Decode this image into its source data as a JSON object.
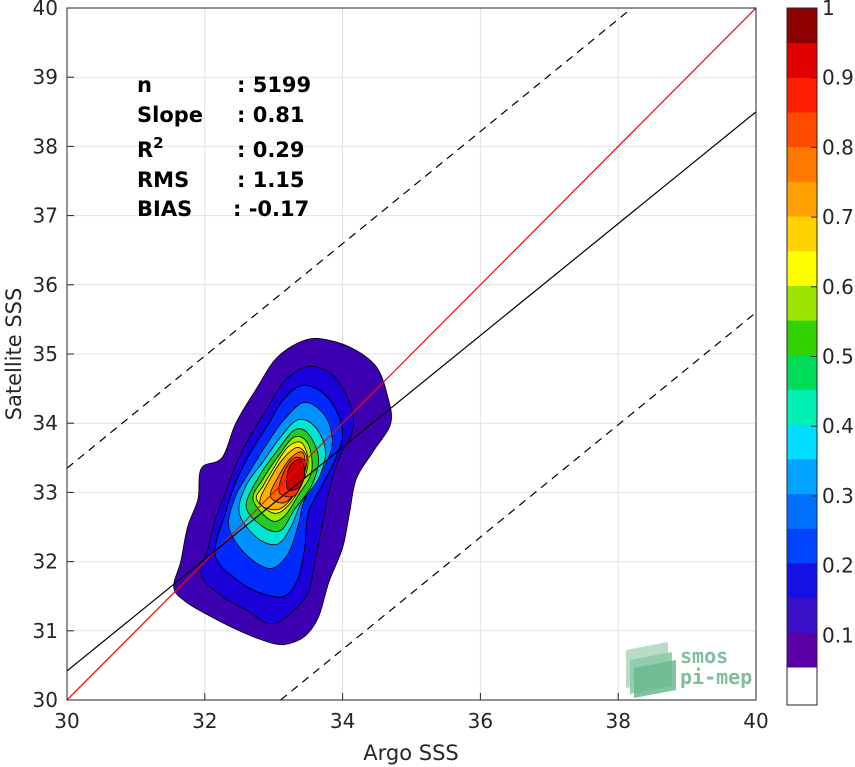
{
  "chart_data": {
    "type": "contour-density-scatter",
    "xlabel": "Argo SSS",
    "ylabel": "Satellite SSS",
    "xlim": [
      30,
      40
    ],
    "ylim": [
      30,
      40
    ],
    "x_ticks": [
      "30",
      "32",
      "34",
      "36",
      "38",
      "40"
    ],
    "y_ticks": [
      "30",
      "31",
      "32",
      "33",
      "34",
      "35",
      "36",
      "37",
      "38",
      "39",
      "40"
    ],
    "grid": true,
    "stats": {
      "n_label": "n",
      "n_value": ": 5199",
      "slope_label": "Slope",
      "slope_value": ": 0.81",
      "r2_label": "R",
      "r2_sup": "2",
      "r2_value": ": 0.29",
      "rms_label": "RMS",
      "rms_value": ": 1.15",
      "bias_label": "BIAS",
      "bias_value": ": -0.17"
    },
    "lines": [
      {
        "role": "one-to-one",
        "color": "#ff0000",
        "style": "solid",
        "x": [
          30,
          40
        ],
        "y": [
          30,
          40
        ]
      },
      {
        "role": "regression",
        "color": "#000000",
        "style": "solid",
        "x": [
          30,
          40
        ],
        "y": [
          30.42,
          38.5
        ]
      },
      {
        "role": "upper-bound",
        "color": "#000000",
        "style": "dashed",
        "x": [
          30,
          38.2
        ],
        "y": [
          33.35,
          40
        ]
      },
      {
        "role": "lower-bound",
        "color": "#000000",
        "style": "dashed",
        "x": [
          33.1,
          40
        ],
        "y": [
          30,
          35.6
        ]
      }
    ],
    "contour_levels": [
      {
        "level": 0.05,
        "color": "#3d00b0",
        "points": [
          [
            31.55,
            31.62
          ],
          [
            31.75,
            31.4
          ],
          [
            32.1,
            31.2
          ],
          [
            32.5,
            31.0
          ],
          [
            32.85,
            30.86
          ],
          [
            33.15,
            30.8
          ],
          [
            33.45,
            30.92
          ],
          [
            33.65,
            31.2
          ],
          [
            33.8,
            31.7
          ],
          [
            34.0,
            32.2
          ],
          [
            34.1,
            32.7
          ],
          [
            34.2,
            33.2
          ],
          [
            34.45,
            33.6
          ],
          [
            34.7,
            34.0
          ],
          [
            34.65,
            34.4
          ],
          [
            34.5,
            34.8
          ],
          [
            34.2,
            35.05
          ],
          [
            33.8,
            35.2
          ],
          [
            33.45,
            35.2
          ],
          [
            33.05,
            34.95
          ],
          [
            32.75,
            34.5
          ],
          [
            32.45,
            34.0
          ],
          [
            32.25,
            33.5
          ],
          [
            31.95,
            33.35
          ],
          [
            31.9,
            32.9
          ],
          [
            31.75,
            32.5
          ],
          [
            31.65,
            32.0
          ]
        ]
      },
      {
        "level": 0.1,
        "color": "#1a00d9",
        "points": [
          [
            31.95,
            31.8
          ],
          [
            32.25,
            31.5
          ],
          [
            32.6,
            31.3
          ],
          [
            32.95,
            31.1
          ],
          [
            33.25,
            31.25
          ],
          [
            33.5,
            31.55
          ],
          [
            33.6,
            32.0
          ],
          [
            33.7,
            32.5
          ],
          [
            33.8,
            33.0
          ],
          [
            33.95,
            33.5
          ],
          [
            34.15,
            33.9
          ],
          [
            34.1,
            34.3
          ],
          [
            33.85,
            34.7
          ],
          [
            33.5,
            34.82
          ],
          [
            33.15,
            34.6
          ],
          [
            32.9,
            34.2
          ],
          [
            32.65,
            33.8
          ],
          [
            32.45,
            33.4
          ],
          [
            32.3,
            33.0
          ],
          [
            32.15,
            32.6
          ],
          [
            32.05,
            32.2
          ]
        ]
      },
      {
        "level": 0.15,
        "color": "#0028ff",
        "points": [
          [
            32.15,
            32.1
          ],
          [
            32.45,
            31.75
          ],
          [
            32.8,
            31.55
          ],
          [
            33.15,
            31.5
          ],
          [
            33.35,
            31.75
          ],
          [
            33.45,
            32.2
          ],
          [
            33.5,
            32.7
          ],
          [
            33.7,
            33.1
          ],
          [
            33.9,
            33.5
          ],
          [
            34.0,
            33.9
          ],
          [
            33.8,
            34.35
          ],
          [
            33.45,
            34.55
          ],
          [
            33.15,
            34.35
          ],
          [
            32.9,
            33.95
          ],
          [
            32.65,
            33.55
          ],
          [
            32.45,
            33.15
          ],
          [
            32.3,
            32.7
          ]
        ]
      },
      {
        "level": 0.25,
        "color": "#0090ff",
        "points": [
          [
            32.35,
            32.5
          ],
          [
            32.6,
            32.1
          ],
          [
            32.95,
            31.9
          ],
          [
            33.2,
            32.1
          ],
          [
            33.35,
            32.5
          ],
          [
            33.45,
            32.9
          ],
          [
            33.7,
            33.3
          ],
          [
            33.85,
            33.7
          ],
          [
            33.75,
            34.1
          ],
          [
            33.45,
            34.3
          ],
          [
            33.15,
            34.05
          ],
          [
            32.9,
            33.7
          ],
          [
            32.65,
            33.3
          ],
          [
            32.45,
            32.95
          ]
        ]
      },
      {
        "level": 0.35,
        "color": "#00e5d0",
        "points": [
          [
            32.5,
            32.7
          ],
          [
            32.75,
            32.35
          ],
          [
            33.05,
            32.25
          ],
          [
            33.25,
            32.5
          ],
          [
            33.4,
            32.85
          ],
          [
            33.65,
            33.2
          ],
          [
            33.75,
            33.6
          ],
          [
            33.6,
            33.95
          ],
          [
            33.35,
            34.05
          ],
          [
            33.1,
            33.8
          ],
          [
            32.85,
            33.45
          ],
          [
            32.6,
            33.1
          ]
        ]
      },
      {
        "level": 0.45,
        "color": "#22cc22",
        "points": [
          [
            32.6,
            32.8
          ],
          [
            32.85,
            32.5
          ],
          [
            33.1,
            32.45
          ],
          [
            33.3,
            32.75
          ],
          [
            33.55,
            33.1
          ],
          [
            33.65,
            33.5
          ],
          [
            33.5,
            33.85
          ],
          [
            33.3,
            33.9
          ],
          [
            33.05,
            33.6
          ],
          [
            32.8,
            33.25
          ]
        ]
      },
      {
        "level": 0.55,
        "color": "#99ee00",
        "points": [
          [
            32.7,
            32.9
          ],
          [
            32.95,
            32.6
          ],
          [
            33.15,
            32.65
          ],
          [
            33.35,
            32.95
          ],
          [
            33.55,
            33.3
          ],
          [
            33.5,
            33.7
          ],
          [
            33.3,
            33.8
          ],
          [
            33.05,
            33.5
          ],
          [
            32.85,
            33.2
          ]
        ]
      },
      {
        "level": 0.62,
        "color": "#ffee00",
        "points": [
          [
            32.75,
            32.9
          ],
          [
            33.0,
            32.7
          ],
          [
            33.2,
            32.8
          ],
          [
            33.4,
            33.1
          ],
          [
            33.5,
            33.45
          ],
          [
            33.4,
            33.72
          ],
          [
            33.2,
            33.65
          ],
          [
            33.0,
            33.35
          ],
          [
            32.85,
            33.1
          ]
        ]
      },
      {
        "level": 0.7,
        "color": "#ffb000",
        "points": [
          [
            32.8,
            32.85
          ],
          [
            33.05,
            32.75
          ],
          [
            33.25,
            32.9
          ],
          [
            33.42,
            33.2
          ],
          [
            33.48,
            33.5
          ],
          [
            33.35,
            33.65
          ],
          [
            33.15,
            33.5
          ],
          [
            32.95,
            33.2
          ]
        ]
      },
      {
        "level": 0.78,
        "color": "#ff6a00",
        "points": [
          [
            32.95,
            32.95
          ],
          [
            33.15,
            32.85
          ],
          [
            33.35,
            33.05
          ],
          [
            33.45,
            33.35
          ],
          [
            33.42,
            33.58
          ],
          [
            33.25,
            33.5
          ],
          [
            33.08,
            33.25
          ]
        ]
      },
      {
        "level": 0.85,
        "color": "#ff3000",
        "points": [
          [
            33.08,
            33.0
          ],
          [
            33.3,
            32.95
          ],
          [
            33.42,
            33.2
          ],
          [
            33.45,
            33.45
          ],
          [
            33.3,
            33.5
          ],
          [
            33.15,
            33.3
          ]
        ]
      },
      {
        "level": 0.95,
        "color": "#cc0000",
        "points": [
          [
            33.2,
            33.05
          ],
          [
            33.38,
            33.08
          ],
          [
            33.45,
            33.3
          ],
          [
            33.38,
            33.48
          ],
          [
            33.22,
            33.35
          ]
        ]
      }
    ],
    "colorbar": {
      "ticks": [
        "0.1",
        "0.2",
        "0.3",
        "0.4",
        "0.5",
        "0.6",
        "0.7",
        "0.8",
        "0.9",
        "1"
      ],
      "range": [
        0,
        1
      ],
      "bottom_color": "#ffffff",
      "colors": [
        "#5a00a8",
        "#3a10c8",
        "#1410e6",
        "#0044ff",
        "#0070ff",
        "#00a4ff",
        "#00dcff",
        "#00f0b4",
        "#00dc5a",
        "#32d200",
        "#9be600",
        "#ffff00",
        "#ffd200",
        "#ffa000",
        "#ff7800",
        "#ff4b00",
        "#ff1e00",
        "#e10000",
        "#8c0000"
      ]
    },
    "logo": {
      "line1": "smos",
      "line2": "pi-mep"
    }
  }
}
